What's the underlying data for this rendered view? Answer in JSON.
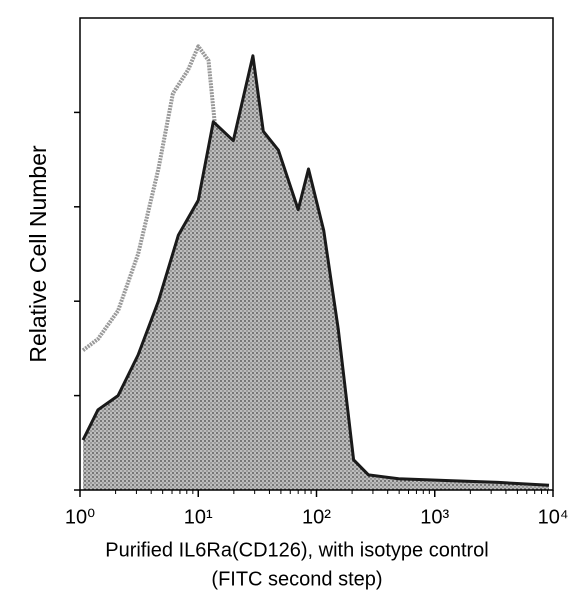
{
  "chart_data": {
    "type": "area",
    "ylabel": "Relative Cell Number",
    "xlabel": [
      "Purified IL6Ra(CD126), with isotype control",
      "(FITC second step)"
    ],
    "xscale": "log",
    "xlim": [
      1,
      10000
    ],
    "xticks": [
      {
        "value": 1,
        "label": "10⁰"
      },
      {
        "value": 10,
        "label": "10¹"
      },
      {
        "value": 100,
        "label": "10²"
      },
      {
        "value": 1000,
        "label": "10³"
      },
      {
        "value": 10000,
        "label": "10⁴"
      }
    ],
    "ylim": [
      0,
      5
    ],
    "yticks": [
      0,
      1,
      2,
      3,
      4
    ],
    "series": [
      {
        "color": "#9a9a9a",
        "filled": false,
        "x": [
          1.06,
          1.42,
          2.1,
          3.1,
          4.6,
          6.1,
          8.2,
          10,
          12.2,
          14.8,
          19.8,
          26.5,
          35.5,
          47.6,
          70,
          153,
          495,
          9250
        ],
        "values": [
          1.48,
          1.6,
          1.9,
          2.5,
          3.4,
          4.2,
          4.45,
          4.7,
          4.55,
          3.5,
          2.44,
          1.06,
          0.32,
          0.1,
          0.05,
          0.03,
          0.02,
          0.02
        ]
      },
      {
        "color": "#1a1a1a",
        "filled": true,
        "x": [
          1.06,
          1.42,
          2.1,
          3.1,
          4.6,
          6.8,
          10,
          13.4,
          19.8,
          29,
          35.5,
          47.6,
          70,
          85.5,
          115,
          153,
          206,
          275,
          495,
          1320,
          3470,
          9250
        ],
        "values": [
          0.53,
          0.85,
          1.0,
          1.43,
          2.0,
          2.7,
          3.07,
          3.9,
          3.7,
          4.6,
          3.8,
          3.6,
          2.97,
          3.4,
          2.75,
          1.7,
          0.32,
          0.16,
          0.12,
          0.1,
          0.08,
          0.05
        ]
      }
    ]
  }
}
